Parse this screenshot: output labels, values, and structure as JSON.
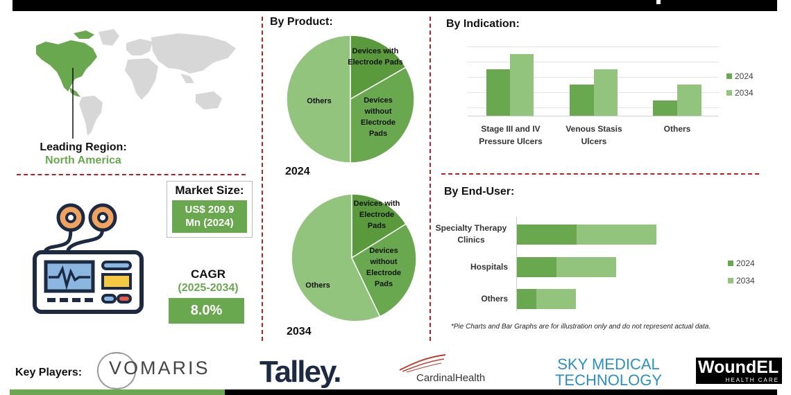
{
  "header": {},
  "region": {
    "title": "Leading Region:",
    "name": "North America"
  },
  "market_size": {
    "title": "Market Size:",
    "value_line1": "US$ 209.9",
    "value_line2": "Mn (2024)"
  },
  "cagr": {
    "title": "CAGR",
    "period": "(2025-2034)",
    "value": "8.0%"
  },
  "by_product": {
    "title": "By Product:",
    "year_2024": "2024",
    "year_2034": "2034",
    "slice_with_pads": "Devices with Electrode Pads",
    "slice_without_pads": "Devices without Electrode Pads",
    "slice_others": "Others"
  },
  "by_indication": {
    "title": "By Indication:",
    "cat1": "Stage III and IV Pressure Ulcers",
    "cat2": "Venous Stasis Ulcers",
    "cat3": "Others",
    "legend_2024": "2024",
    "legend_2034": "2034"
  },
  "by_end_user": {
    "title": "By End-User:",
    "cat1": "Specialty Therapy Clinics",
    "cat2": "Hospitals",
    "cat3": "Others",
    "legend_2024": "2024",
    "legend_2034": "2034",
    "note": "*Pie Charts and Bar Graphs are for illustration only and do not represent actual data."
  },
  "key_players": {
    "label": "Key Players:",
    "vomaris": "VOMARIS",
    "talley": "Talley.",
    "cardinal": "CardinalHealth",
    "sky_line1": "SKY MEDICAL",
    "sky_line2": "TECHNOLOGY",
    "woundel_line1": "WoundEL",
    "woundel_line2": "HEALTH CARE"
  },
  "colors": {
    "dark_green": "#5a9a3c",
    "mid_green": "#6aa84f",
    "light_green": "#93c47d",
    "divider_red": "#b22222",
    "icon_navy": "#1d2a44",
    "icon_orange": "#f0a35e",
    "icon_yellow": "#f6c945",
    "icon_blue": "#8ab6e0",
    "icon_red": "#e05a4e"
  },
  "chart_data": [
    {
      "type": "pie",
      "title": "2024",
      "labels": [
        "Devices with Electrode Pads",
        "Devices without Electrode Pads",
        "Others"
      ],
      "values": [
        15,
        35,
        50
      ]
    },
    {
      "type": "pie",
      "title": "2034",
      "labels": [
        "Devices with Electrode Pads",
        "Devices without Electrode Pads",
        "Others"
      ],
      "values": [
        16,
        26,
        58
      ]
    },
    {
      "type": "bar",
      "title": "By Indication:",
      "categories": [
        "Stage III and IV Pressure Ulcers",
        "Venous Stasis Ulcers",
        "Others"
      ],
      "series": [
        {
          "name": "2024",
          "values": [
            3,
            2,
            1
          ]
        },
        {
          "name": "2034",
          "values": [
            4,
            3,
            2
          ]
        }
      ],
      "ylim": [
        0,
        4.5
      ],
      "grid": true,
      "legend": "right"
    },
    {
      "type": "bar",
      "orientation": "horizontal",
      "title": "By End-User:",
      "categories": [
        "Specialty Therapy Clinics",
        "Hospitals",
        "Others"
      ],
      "series": [
        {
          "name": "2024",
          "values": [
            3,
            2,
            1
          ]
        },
        {
          "name": "2034",
          "values": [
            4,
            3,
            2
          ]
        }
      ],
      "legend": "right"
    }
  ]
}
